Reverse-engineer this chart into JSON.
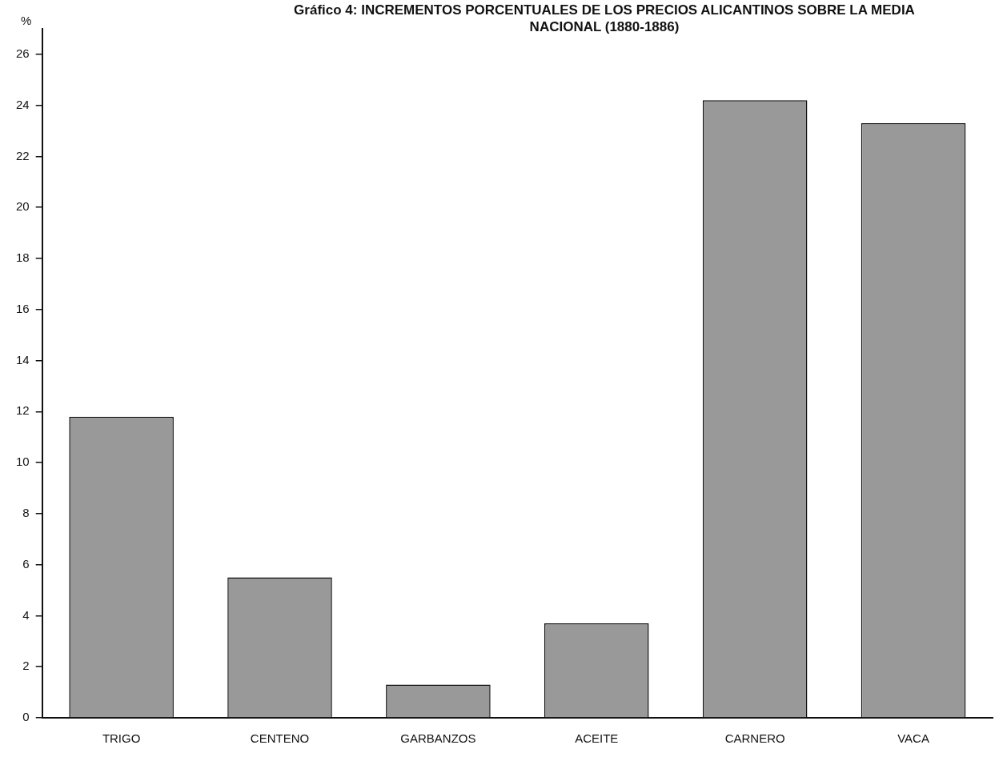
{
  "chart_data": {
    "type": "bar",
    "title": "Gráfico 4: INCREMENTOS PORCENTUALES DE LOS PRECIOS ALICANTINOS SOBRE LA MEDIA NACIONAL (1880-1886)",
    "ylabel": "%",
    "categories": [
      "TRIGO",
      "CENTENO",
      "GARBANZOS",
      "ACEITE",
      "CARNERO",
      "VACA"
    ],
    "values": [
      11.8,
      5.5,
      1.3,
      3.7,
      24.2,
      23.3
    ],
    "color": "#999999",
    "ylim": [
      0,
      27
    ],
    "yticks": [
      0,
      2,
      4,
      6,
      8,
      10,
      12,
      14,
      16,
      18,
      20,
      22,
      24,
      26
    ],
    "grid": false,
    "legend": false
  }
}
